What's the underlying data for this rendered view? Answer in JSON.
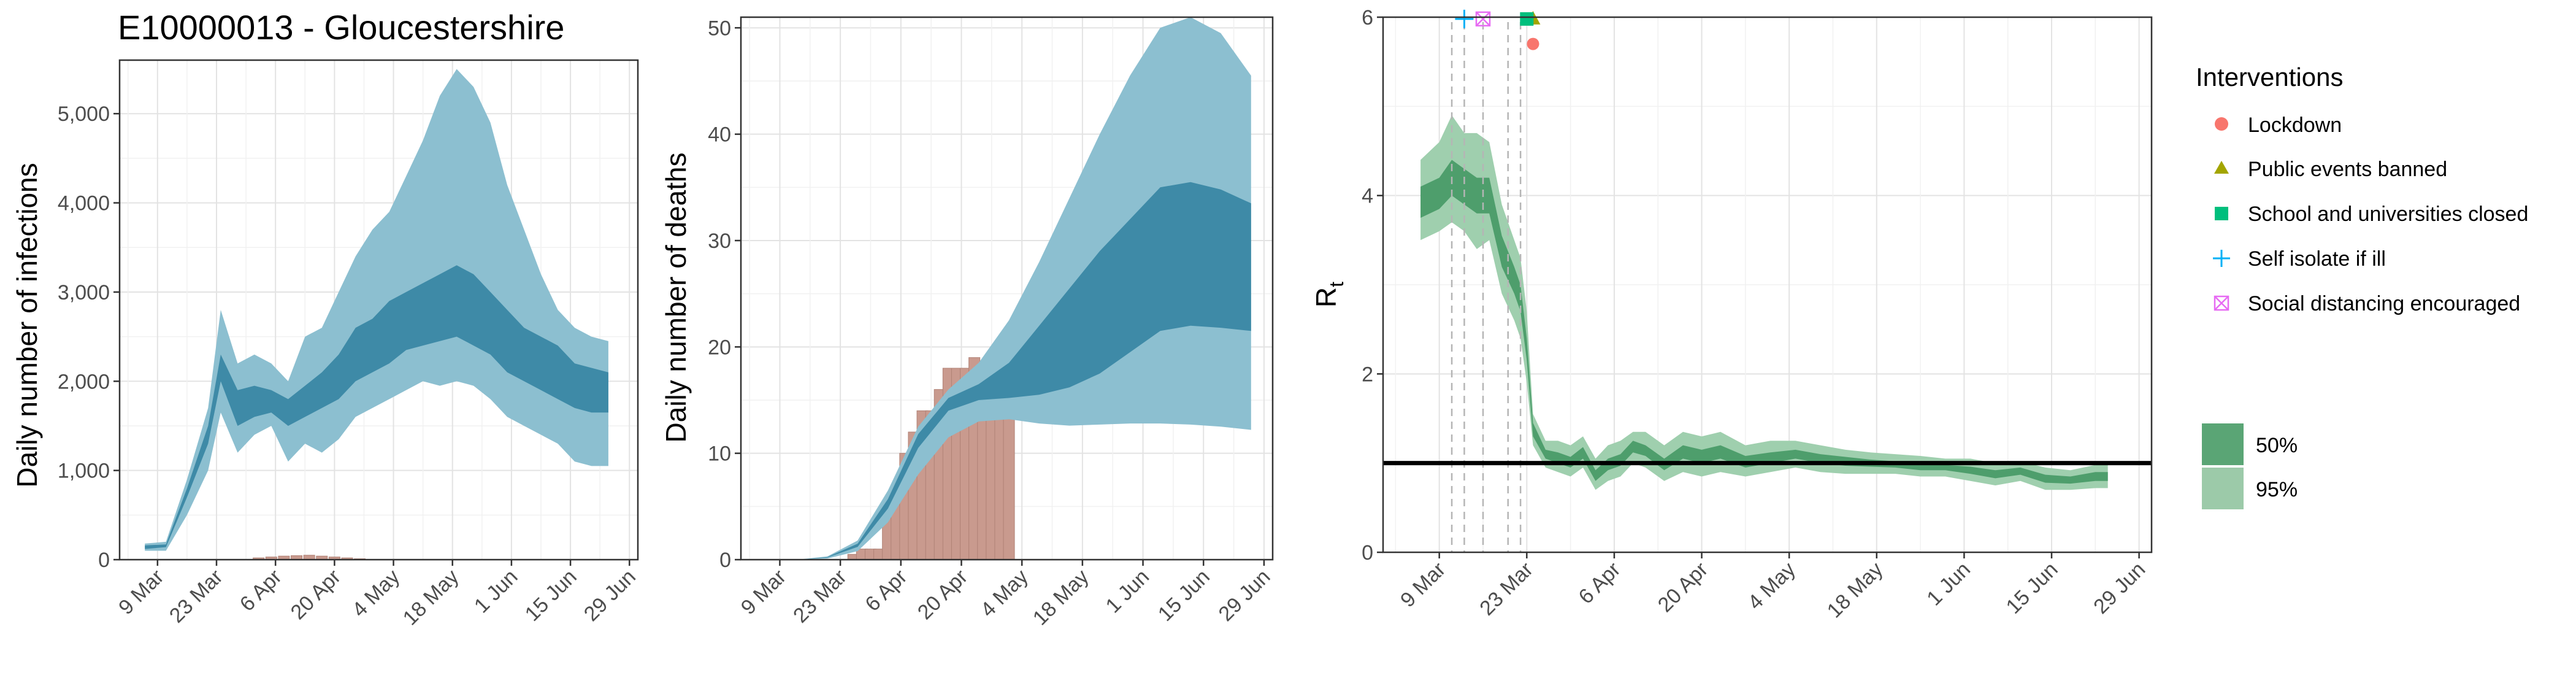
{
  "figure_title": "E10000013 - Gloucestershire",
  "x_tick_labels": [
    "9 Mar",
    "23 Mar",
    "6 Apr",
    "20 Apr",
    "4 May",
    "18 May",
    "1 Jun",
    "15 Jun",
    "29 Jun"
  ],
  "colors": {
    "band_outer": "#8cbfd0",
    "band_inner": "#3a87a4",
    "observed_bars": "#c99a8e",
    "rt_outer": "#9fcfae",
    "rt_inner": "#4e9e6c",
    "lockdown": "#f8766d",
    "public_events": "#a3a500",
    "schools": "#00bf7d",
    "self_isolate": "#00b0f6",
    "social_distancing": "#e76bf3"
  },
  "chart_data": [
    {
      "type": "area",
      "name": "infections",
      "ylabel": "Daily number of infections",
      "ylim": [
        0,
        5600
      ],
      "y_ticks": [
        0,
        1000,
        2000,
        3000,
        4000,
        5000
      ],
      "y_tick_labels": [
        "0",
        "1,000",
        "2,000",
        "3,000",
        "4,000",
        "5,000"
      ],
      "grid": true,
      "x_dates": [
        "2020-03-06",
        "2020-03-11",
        "2020-03-16",
        "2020-03-21",
        "2020-03-24",
        "2020-03-28",
        "2020-04-01",
        "2020-04-05",
        "2020-04-09",
        "2020-04-13",
        "2020-04-17",
        "2020-04-21",
        "2020-04-25",
        "2020-04-29",
        "2020-05-03",
        "2020-05-07",
        "2020-05-11",
        "2020-05-15",
        "2020-05-19",
        "2020-05-23",
        "2020-05-27",
        "2020-05-31",
        "2020-06-04",
        "2020-06-08",
        "2020-06-12",
        "2020-06-16",
        "2020-06-20",
        "2020-06-24"
      ],
      "ci95_low": [
        100,
        100,
        500,
        1000,
        1650,
        1200,
        1400,
        1500,
        1100,
        1300,
        1200,
        1350,
        1600,
        1700,
        1800,
        1900,
        2000,
        1950,
        2000,
        1950,
        1800,
        1600,
        1500,
        1400,
        1300,
        1100,
        1050,
        1050
      ],
      "ci95_high": [
        180,
        200,
        900,
        1700,
        2800,
        2200,
        2300,
        2200,
        2000,
        2500,
        2600,
        3000,
        3400,
        3700,
        3900,
        4300,
        4700,
        5200,
        5500,
        5300,
        4900,
        4200,
        3700,
        3200,
        2800,
        2600,
        2500,
        2450
      ],
      "ci50_low": [
        120,
        140,
        700,
        1300,
        2000,
        1500,
        1600,
        1650,
        1500,
        1600,
        1700,
        1800,
        2000,
        2100,
        2200,
        2350,
        2400,
        2450,
        2500,
        2400,
        2300,
        2100,
        2000,
        1900,
        1800,
        1700,
        1650,
        1650
      ],
      "ci50_high": [
        160,
        170,
        800,
        1500,
        2300,
        1900,
        1950,
        1900,
        1800,
        1950,
        2100,
        2300,
        2600,
        2700,
        2900,
        3000,
        3100,
        3200,
        3300,
        3200,
        3000,
        2800,
        2600,
        2500,
        2400,
        2200,
        2150,
        2100
      ],
      "observed_dates": [
        "2020-04-02",
        "2020-04-05",
        "2020-04-08",
        "2020-04-11",
        "2020-04-14",
        "2020-04-17",
        "2020-04-20",
        "2020-04-23",
        "2020-04-26"
      ],
      "observed_values": [
        20,
        30,
        40,
        45,
        50,
        40,
        30,
        20,
        10
      ]
    },
    {
      "type": "area",
      "name": "deaths",
      "ylabel": "Daily number of deaths",
      "ylim": [
        0,
        51
      ],
      "y_ticks": [
        0,
        10,
        20,
        30,
        40,
        50
      ],
      "y_tick_labels": [
        "0",
        "10",
        "20",
        "30",
        "40",
        "50"
      ],
      "grid": true,
      "x_dates": [
        "2020-03-06",
        "2020-03-13",
        "2020-03-20",
        "2020-03-27",
        "2020-04-03",
        "2020-04-10",
        "2020-04-17",
        "2020-04-24",
        "2020-05-01",
        "2020-05-08",
        "2020-05-15",
        "2020-05-22",
        "2020-05-29",
        "2020-06-05",
        "2020-06-12",
        "2020-06-19",
        "2020-06-26"
      ],
      "ci95_low": [
        0,
        0,
        0.1,
        0.8,
        3.5,
        8,
        11.5,
        13,
        13.2,
        12.8,
        12.6,
        12.7,
        12.8,
        12.8,
        12.7,
        12.5,
        12.2
      ],
      "ci95_high": [
        0,
        0,
        0.3,
        1.8,
        6.5,
        12.5,
        16,
        18.5,
        22.5,
        28,
        34,
        40,
        45.5,
        50,
        51,
        49.5,
        45.5
      ],
      "ci50_low": [
        0,
        0,
        0.2,
        1.2,
        4.8,
        10.5,
        14,
        15,
        15.2,
        15.5,
        16.2,
        17.5,
        19.5,
        21.5,
        22,
        21.8,
        21.5
      ],
      "ci50_high": [
        0,
        0,
        0.25,
        1.5,
        5.7,
        11.8,
        15.2,
        16.5,
        18.5,
        22,
        25.5,
        29,
        32,
        35,
        35.5,
        34.8,
        33.5
      ],
      "observed_dates": [
        "2020-03-24",
        "2020-03-26",
        "2020-03-28",
        "2020-03-30",
        "2020-04-01",
        "2020-04-03",
        "2020-04-05",
        "2020-04-07",
        "2020-04-09",
        "2020-04-11",
        "2020-04-13",
        "2020-04-15",
        "2020-04-17",
        "2020-04-19",
        "2020-04-21",
        "2020-04-23",
        "2020-04-25",
        "2020-04-27",
        "2020-04-29",
        "2020-05-01"
      ],
      "observed_values": [
        0,
        0.5,
        1,
        1,
        1,
        4,
        6,
        10,
        12,
        14,
        14,
        16,
        18,
        18,
        18,
        19,
        17,
        16,
        15,
        15
      ]
    },
    {
      "type": "area",
      "name": "rt",
      "ylabel_main": "R",
      "ylabel_sub": "t",
      "ylim": [
        0,
        6
      ],
      "y_ticks": [
        0,
        2,
        4,
        6
      ],
      "y_tick_labels": [
        "0",
        "2",
        "4",
        "6"
      ],
      "reference_line": 1,
      "grid": true,
      "x_dates": [
        "2020-03-06",
        "2020-03-09",
        "2020-03-11",
        "2020-03-13",
        "2020-03-15",
        "2020-03-17",
        "2020-03-19",
        "2020-03-21",
        "2020-03-22",
        "2020-03-23",
        "2020-03-24",
        "2020-03-26",
        "2020-03-28",
        "2020-03-30",
        "2020-04-01",
        "2020-04-03",
        "2020-04-05",
        "2020-04-07",
        "2020-04-09",
        "2020-04-11",
        "2020-04-14",
        "2020-04-17",
        "2020-04-20",
        "2020-04-23",
        "2020-04-27",
        "2020-05-01",
        "2020-05-05",
        "2020-05-09",
        "2020-05-13",
        "2020-05-17",
        "2020-05-21",
        "2020-05-25",
        "2020-05-29",
        "2020-06-02",
        "2020-06-06",
        "2020-06-10",
        "2020-06-14",
        "2020-06-18",
        "2020-06-22",
        "2020-06-24"
      ],
      "ci95_low": [
        3.5,
        3.6,
        3.7,
        3.6,
        3.4,
        3.5,
        2.9,
        2.6,
        2.4,
        1.9,
        1.2,
        0.95,
        0.9,
        0.85,
        0.95,
        0.7,
        0.8,
        0.85,
        1.0,
        0.95,
        0.8,
        0.9,
        0.85,
        0.9,
        0.85,
        0.9,
        0.95,
        0.9,
        0.88,
        0.88,
        0.88,
        0.85,
        0.85,
        0.8,
        0.75,
        0.8,
        0.7,
        0.7,
        0.72,
        0.72
      ],
      "ci95_high": [
        4.4,
        4.6,
        4.9,
        4.7,
        4.7,
        4.6,
        3.9,
        3.5,
        3.3,
        2.7,
        1.55,
        1.25,
        1.25,
        1.2,
        1.3,
        1.05,
        1.2,
        1.25,
        1.35,
        1.35,
        1.2,
        1.35,
        1.3,
        1.35,
        1.2,
        1.25,
        1.25,
        1.2,
        1.15,
        1.12,
        1.1,
        1.08,
        1.05,
        1.05,
        1.0,
        1.02,
        0.95,
        0.92,
        0.98,
        0.98
      ],
      "ci50_low": [
        3.75,
        3.85,
        4.0,
        3.9,
        3.8,
        3.8,
        3.2,
        2.9,
        2.7,
        2.15,
        1.3,
        1.05,
        1.0,
        0.95,
        1.05,
        0.8,
        0.92,
        0.97,
        1.12,
        1.08,
        0.92,
        1.05,
        1.0,
        1.05,
        0.95,
        1.0,
        1.05,
        1.0,
        0.97,
        0.96,
        0.95,
        0.92,
        0.92,
        0.88,
        0.83,
        0.87,
        0.78,
        0.77,
        0.8,
        0.8
      ],
      "ci50_high": [
        4.1,
        4.2,
        4.4,
        4.3,
        4.2,
        4.2,
        3.55,
        3.2,
        3.0,
        2.4,
        1.45,
        1.15,
        1.12,
        1.07,
        1.18,
        0.92,
        1.05,
        1.1,
        1.25,
        1.2,
        1.05,
        1.2,
        1.15,
        1.2,
        1.08,
        1.12,
        1.15,
        1.1,
        1.07,
        1.04,
        1.02,
        1.0,
        0.98,
        0.96,
        0.92,
        0.95,
        0.87,
        0.85,
        0.9,
        0.9
      ],
      "interventions": [
        {
          "label": "Lockdown",
          "date": "2020-03-24",
          "y": 5.7,
          "shape": "circle",
          "color": "#f8766d"
        },
        {
          "label": "Public events banned",
          "date": "2020-03-24",
          "y": 5.98,
          "shape": "triangle",
          "color": "#a3a500"
        },
        {
          "label": "School and universities closed",
          "date": "2020-03-23",
          "y": 5.98,
          "shape": "square",
          "color": "#00bf7d"
        },
        {
          "label": "Self isolate if ill",
          "date": "2020-03-13",
          "y": 5.98,
          "shape": "plus",
          "color": "#00b0f6"
        },
        {
          "label": "Social distancing encouraged",
          "date": "2020-03-16",
          "y": 5.98,
          "shape": "boxx",
          "color": "#e76bf3"
        }
      ],
      "vlines_dates": [
        "2020-03-11",
        "2020-03-13",
        "2020-03-16",
        "2020-03-20",
        "2020-03-22"
      ]
    }
  ],
  "legend": {
    "title": "Interventions",
    "items": [
      "Lockdown",
      "Public events banned",
      "School and universities closed",
      "Self isolate if ill",
      "Social distancing encouraged"
    ],
    "ci_items": [
      "50%",
      "95%"
    ]
  }
}
